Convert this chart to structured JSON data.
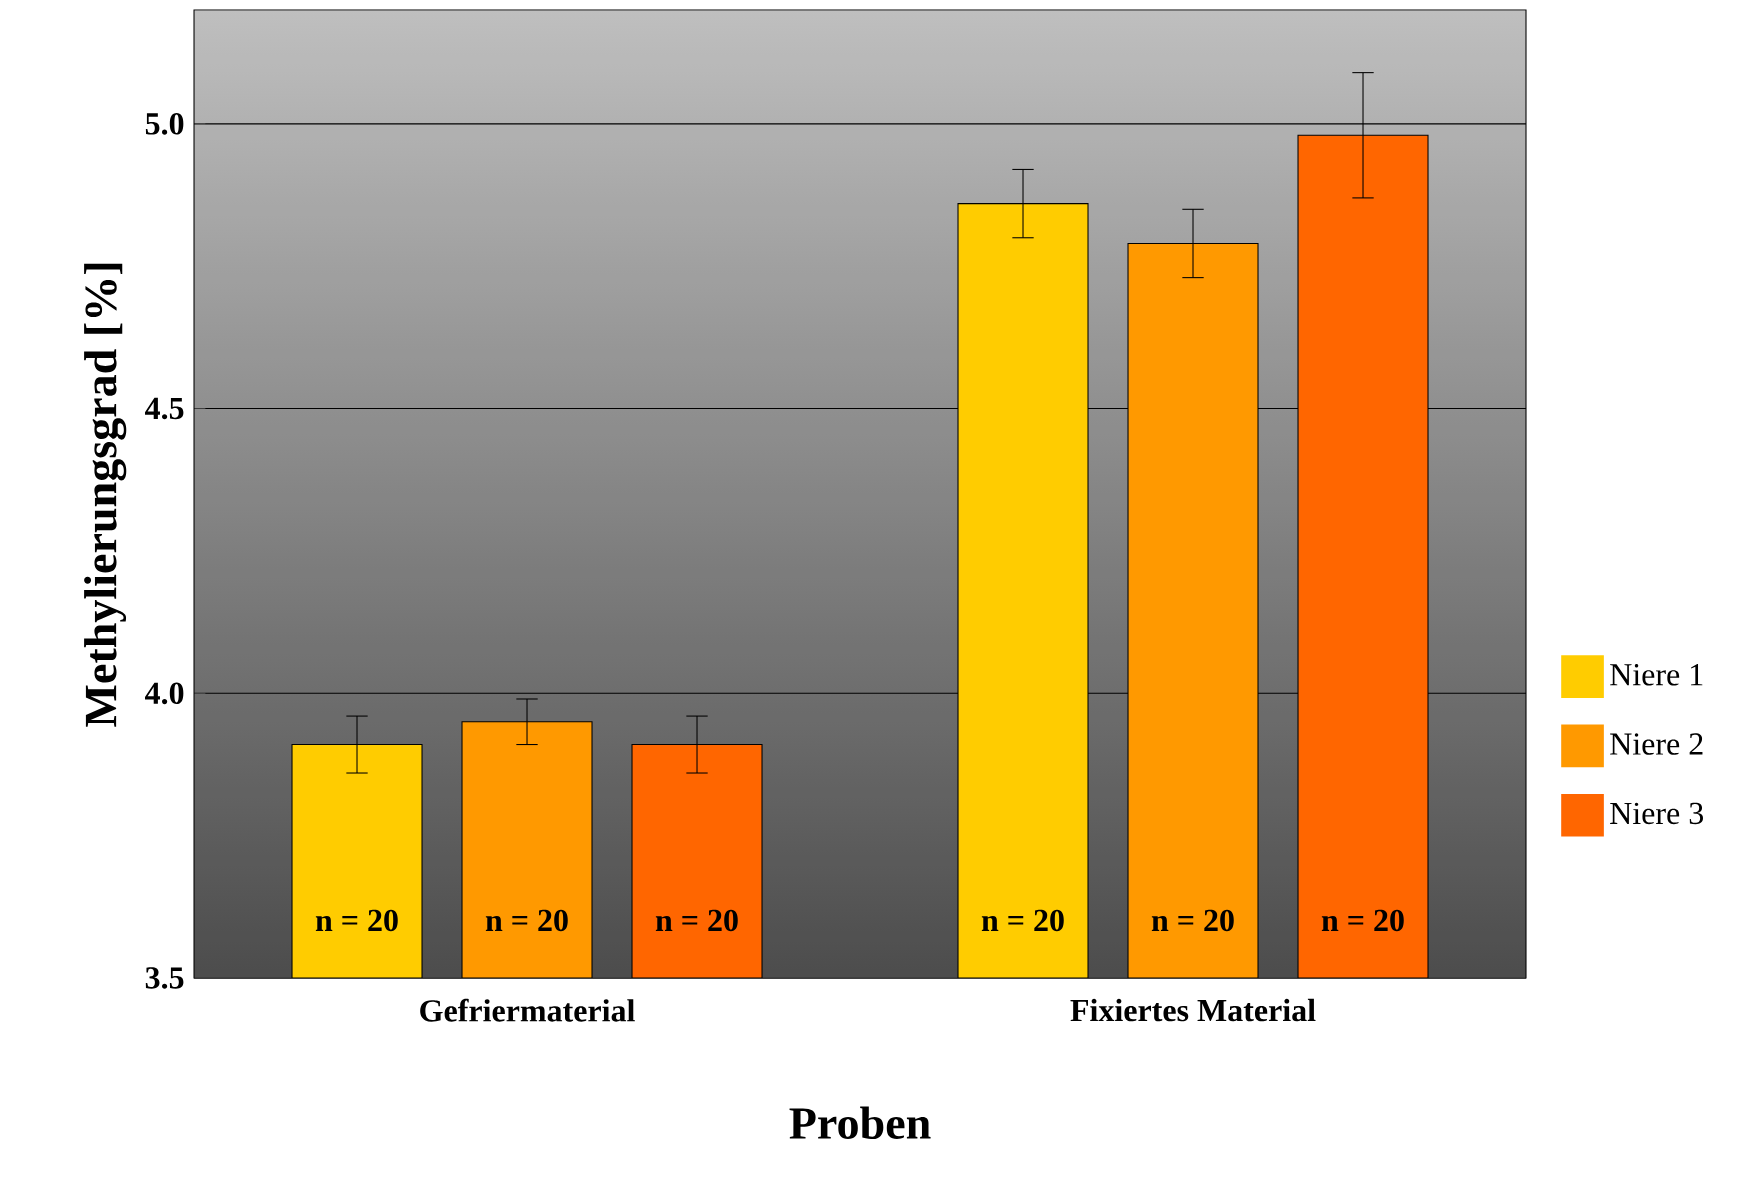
{
  "chart_data": {
    "type": "bar",
    "xlabel": "Proben",
    "ylabel": "Methylierungsgrad [%]",
    "categories": [
      "Gefriermaterial",
      "Fixiertes Material"
    ],
    "series": [
      {
        "name": "Niere 1",
        "color": "#ffcc00",
        "values": [
          3.91,
          4.86
        ],
        "errors": [
          0.05,
          0.06
        ]
      },
      {
        "name": "Niere 2",
        "color": "#ff9900",
        "values": [
          3.95,
          4.79
        ],
        "errors": [
          0.04,
          0.06
        ]
      },
      {
        "name": "Niere 3",
        "color": "#ff6600",
        "values": [
          3.91,
          4.98
        ],
        "errors": [
          0.05,
          0.11
        ]
      }
    ],
    "annotations": [
      "n = 20",
      "n = 20",
      "n = 20",
      "n = 20",
      "n = 20",
      "n = 20"
    ],
    "ylim": [
      3.5,
      5.2
    ],
    "yticks": [
      3.5,
      {
        "value": 4,
        "label": "4.0"
      },
      4.5,
      {
        "value": 5,
        "label": "5.0"
      }
    ],
    "grid": "y",
    "legend": "right"
  }
}
